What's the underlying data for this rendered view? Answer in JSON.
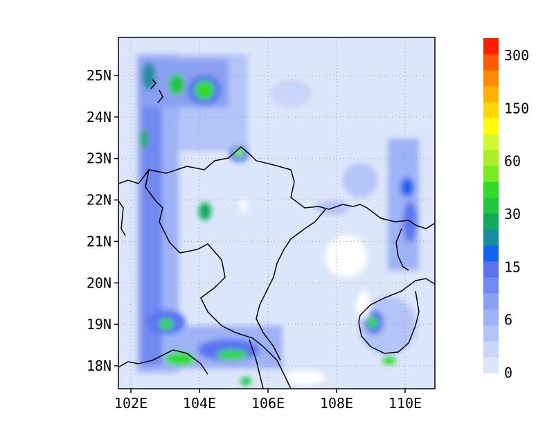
{
  "map": {
    "lon_ticks": [
      "102E",
      "104E",
      "106E",
      "108E",
      "110E"
    ],
    "lat_ticks": [
      "18N",
      "19N",
      "20N",
      "21N",
      "22N",
      "23N",
      "24N",
      "25N"
    ],
    "colorbar": {
      "labels": [
        "0",
        "6",
        "15",
        "30",
        "60",
        "150",
        "300"
      ],
      "colors": [
        "#dce6fa",
        "#c8d4f8",
        "#b4c4f8",
        "#9eb2f6",
        "#8aa0f2",
        "#7088f0",
        "#5a74f0",
        "#1464f0",
        "#1a8ca0",
        "#10aa5a",
        "#1ec83c",
        "#32dc28",
        "#78ec1e",
        "#aaf028",
        "#d2f830",
        "#ffff00",
        "#ffd800",
        "#ffb000",
        "#ff8c00",
        "#ff5a00",
        "#ff1e00"
      ]
    }
  }
}
